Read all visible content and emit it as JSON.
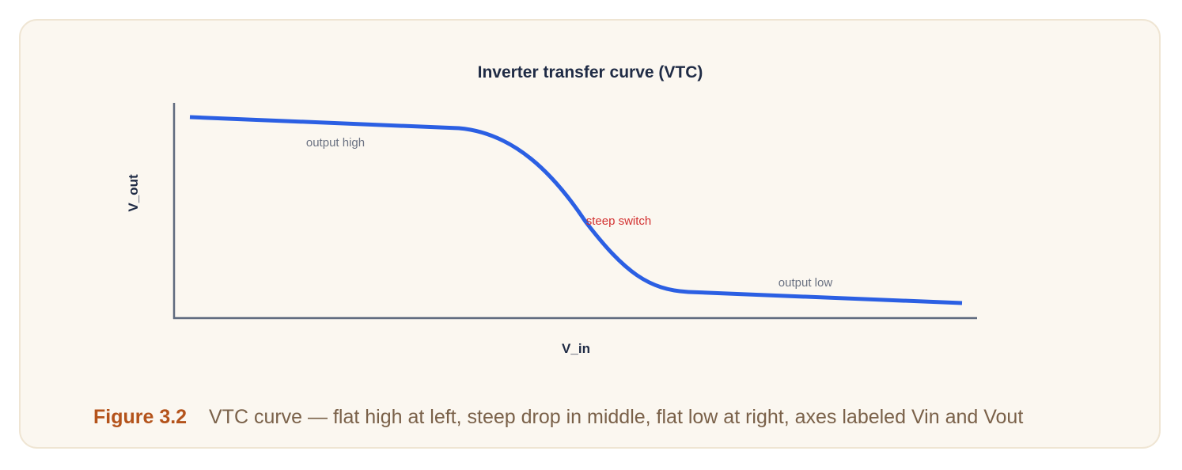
{
  "figure": {
    "title": "Inverter transfer curve (VTC)",
    "y_axis_label": "V_out",
    "x_axis_label": "V_in",
    "annotations": [
      "output high",
      "steep switch",
      "output low"
    ],
    "caption": {
      "label": "Figure 3.2",
      "text": "VTC curve — flat high at left, steep drop in middle, flat low at right, axes labeled Vin and Vout"
    }
  }
}
